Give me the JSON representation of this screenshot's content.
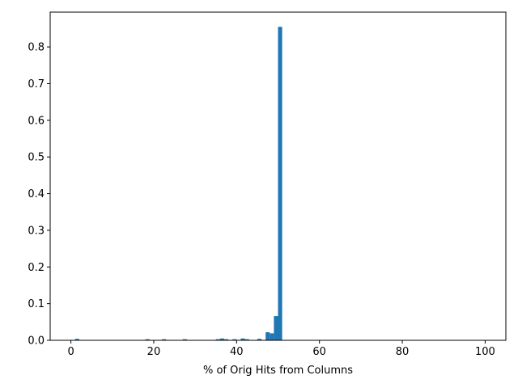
{
  "chart_data": {
    "type": "bar",
    "subtype": "histogram",
    "title": "",
    "xlabel": "% of Orig Hits from Columns",
    "ylabel": "",
    "xlim": [
      -5,
      105
    ],
    "ylim": [
      0,
      0.895
    ],
    "xticks": [
      0,
      20,
      40,
      60,
      80,
      100
    ],
    "xtick_labels": [
      "0",
      "20",
      "40",
      "60",
      "80",
      "100"
    ],
    "yticks": [
      0.0,
      0.1,
      0.2,
      0.3,
      0.4,
      0.5,
      0.6,
      0.7,
      0.8
    ],
    "ytick_labels": [
      "0.0",
      "0.1",
      "0.2",
      "0.3",
      "0.4",
      "0.5",
      "0.6",
      "0.7",
      "0.8"
    ],
    "grid": false,
    "color": "#1f77b4",
    "bin_width": 1,
    "bins": [
      {
        "x0": 0,
        "x1": 1,
        "value": 0.001
      },
      {
        "x0": 1,
        "x1": 2,
        "value": 0.004
      },
      {
        "x0": 18,
        "x1": 19,
        "value": 0.003
      },
      {
        "x0": 22,
        "x1": 23,
        "value": 0.003
      },
      {
        "x0": 27,
        "x1": 28,
        "value": 0.003
      },
      {
        "x0": 35,
        "x1": 36,
        "value": 0.003
      },
      {
        "x0": 36,
        "x1": 37,
        "value": 0.005
      },
      {
        "x0": 37,
        "x1": 38,
        "value": 0.003
      },
      {
        "x0": 39,
        "x1": 40,
        "value": 0.003
      },
      {
        "x0": 41,
        "x1": 42,
        "value": 0.005
      },
      {
        "x0": 42,
        "x1": 43,
        "value": 0.003
      },
      {
        "x0": 45,
        "x1": 46,
        "value": 0.004
      },
      {
        "x0": 47,
        "x1": 48,
        "value": 0.022
      },
      {
        "x0": 48,
        "x1": 49,
        "value": 0.019
      },
      {
        "x0": 49,
        "x1": 50,
        "value": 0.066
      },
      {
        "x0": 50,
        "x1": 51,
        "value": 0.855
      }
    ]
  }
}
